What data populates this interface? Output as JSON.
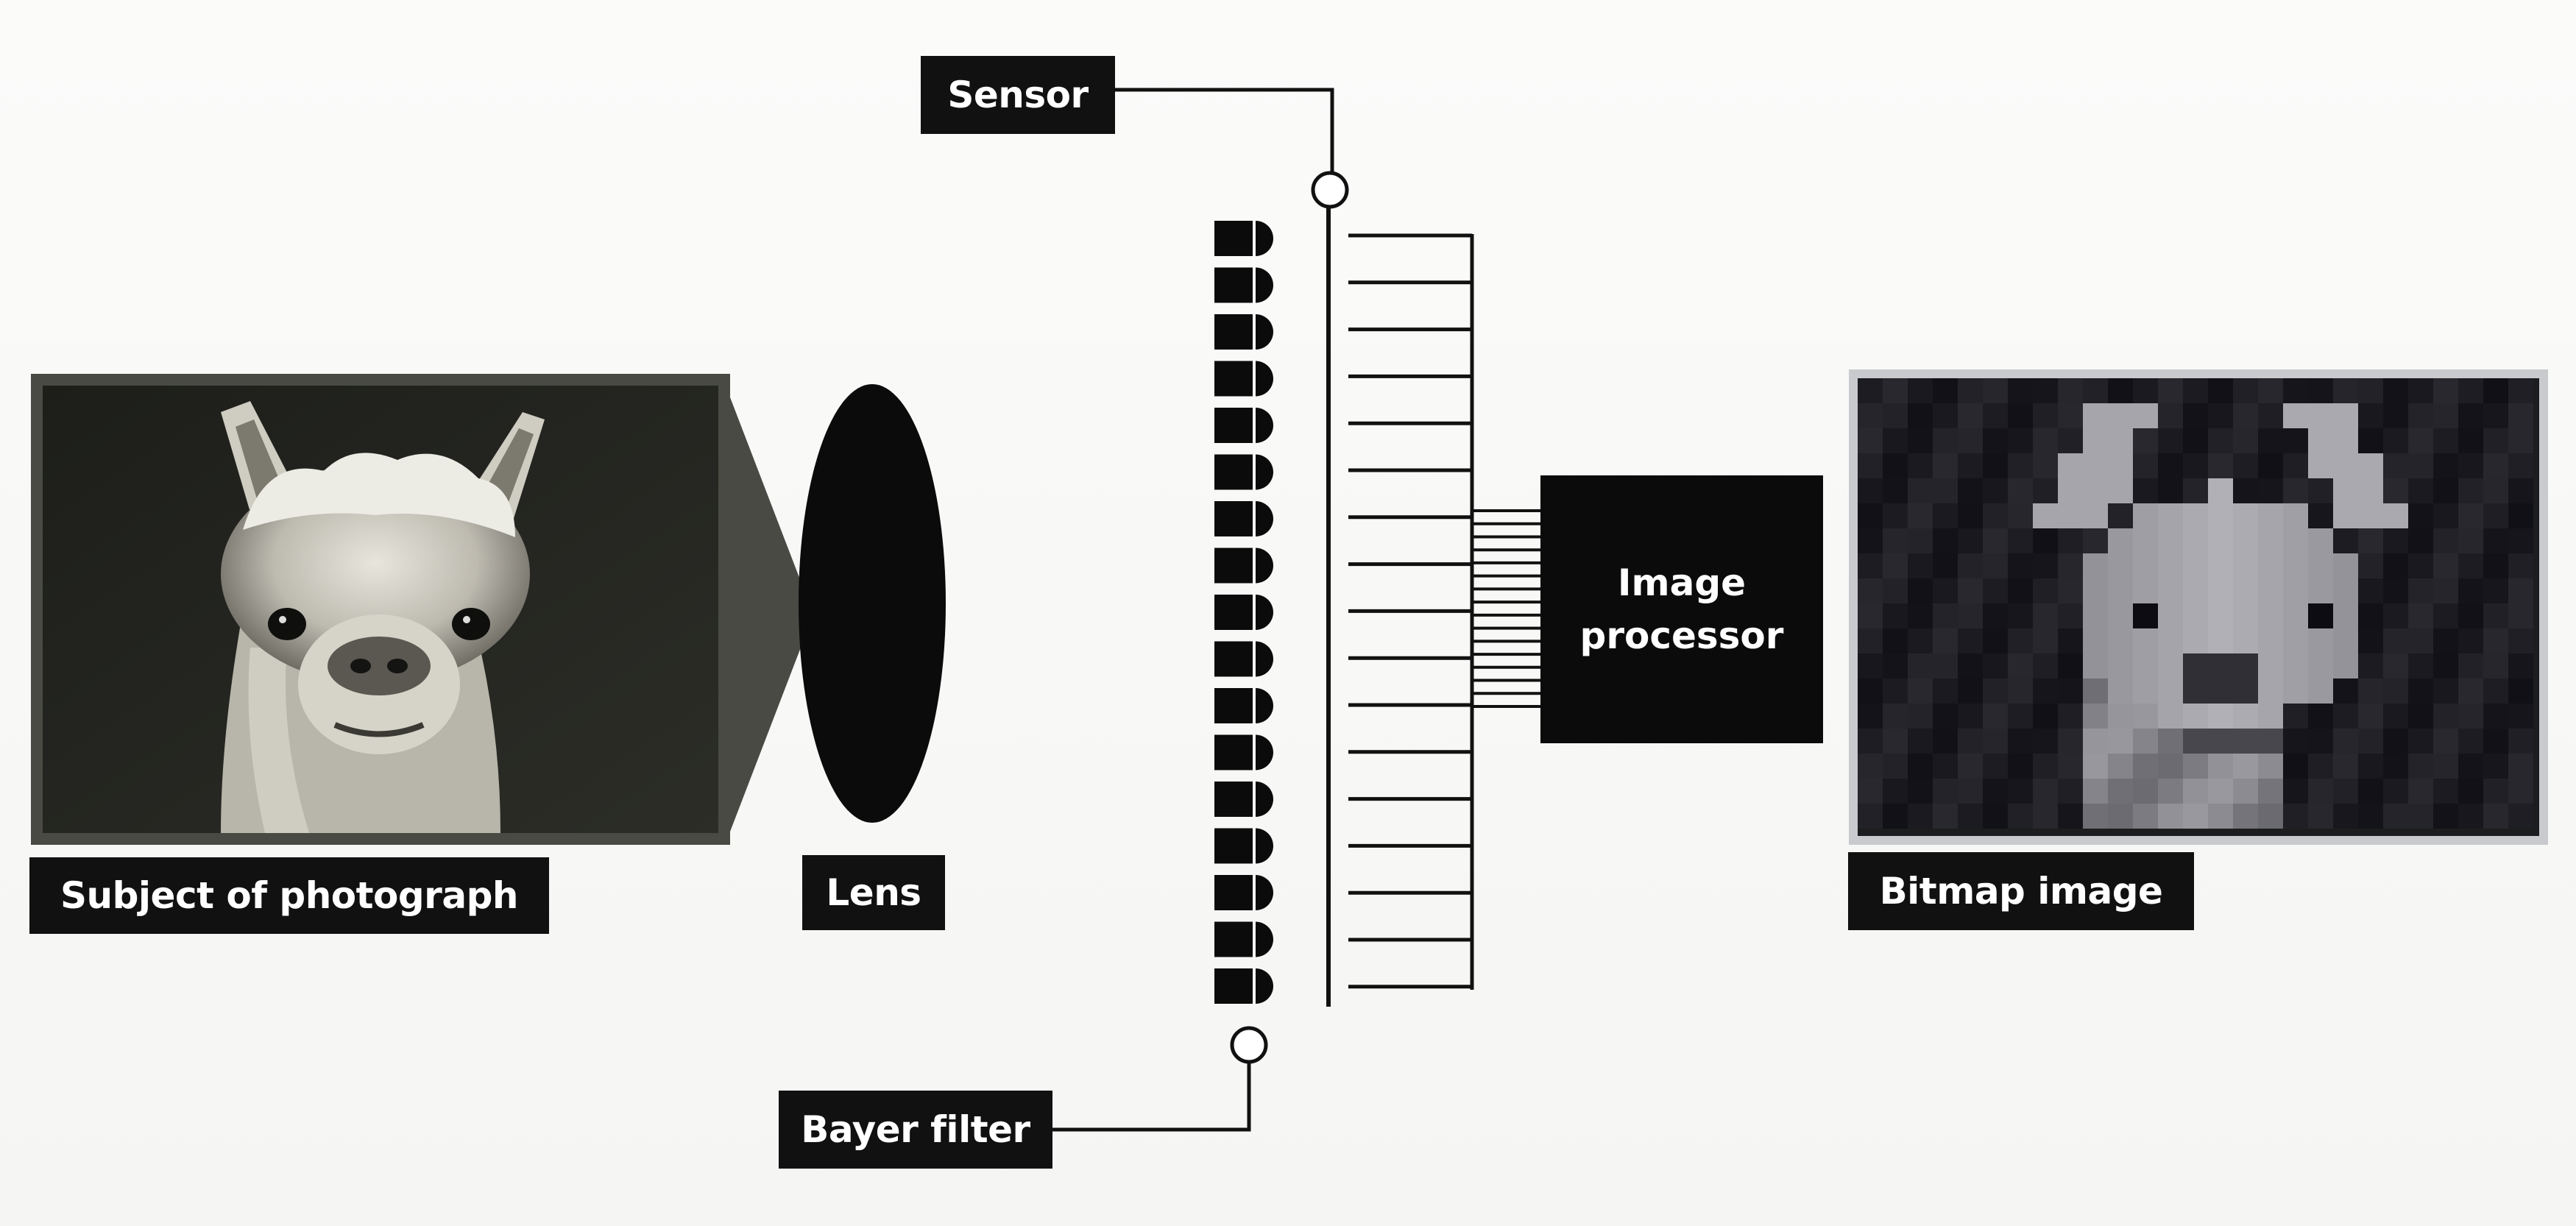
{
  "labels": {
    "sensor": "Sensor",
    "subject": "Subject of photograph",
    "lens": "Lens",
    "image_processor_line1": "Image",
    "image_processor_line2": "processor",
    "bitmap": "Bitmap image",
    "bayer_filter": "Bayer filter"
  },
  "components": [
    "subject-photograph",
    "lens",
    "bayer-filter",
    "sensor",
    "image-processor",
    "bitmap-image"
  ],
  "colors": {
    "ink": "#111111",
    "label_text": "#ffffff",
    "background": "#f7f7f5",
    "photo_frame": "#4a4a44"
  }
}
